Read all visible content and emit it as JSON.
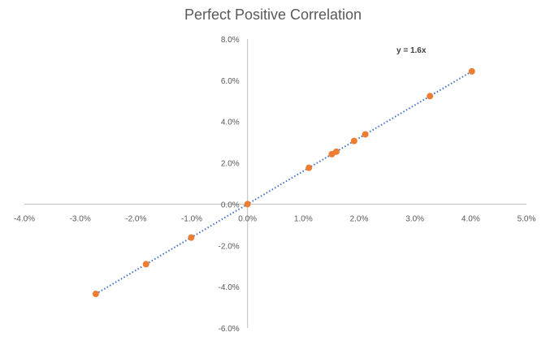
{
  "chart_data": {
    "type": "scatter",
    "title": "Perfect Positive Correlation",
    "xlabel": "",
    "ylabel": "",
    "xlim": [
      -4.0,
      5.0
    ],
    "ylim": [
      -6.0,
      8.0
    ],
    "x_ticks": [
      "-4.0%",
      "-3.0%",
      "-2.0%",
      "-1.0%",
      "0.0%",
      "1.0%",
      "2.0%",
      "3.0%",
      "4.0%",
      "5.0%"
    ],
    "y_ticks": [
      "-6.0%",
      "-4.0%",
      "-2.0%",
      "0.0%",
      "2.0%",
      "4.0%",
      "6.0%",
      "8.0%"
    ],
    "grid": false,
    "unit": "%",
    "points": [
      {
        "x": -2.72,
        "y": -4.35
      },
      {
        "x": -1.82,
        "y": -2.91
      },
      {
        "x": -1.01,
        "y": -1.62
      },
      {
        "x": 0.0,
        "y": 0.0
      },
      {
        "x": 1.1,
        "y": 1.76
      },
      {
        "x": 1.51,
        "y": 2.42
      },
      {
        "x": 1.59,
        "y": 2.54
      },
      {
        "x": 1.91,
        "y": 3.06
      },
      {
        "x": 2.11,
        "y": 3.38
      },
      {
        "x": 3.27,
        "y": 5.23
      },
      {
        "x": 4.02,
        "y": 6.43
      }
    ],
    "trendline": {
      "type": "linear",
      "slope": 1.6,
      "intercept": 0,
      "equation": "y = 1.6x",
      "style": "dotted"
    },
    "colors": {
      "points": "#ED7D31",
      "trendline": "#4472C4",
      "axis": "#BFBFBF",
      "text": "#595959"
    }
  }
}
